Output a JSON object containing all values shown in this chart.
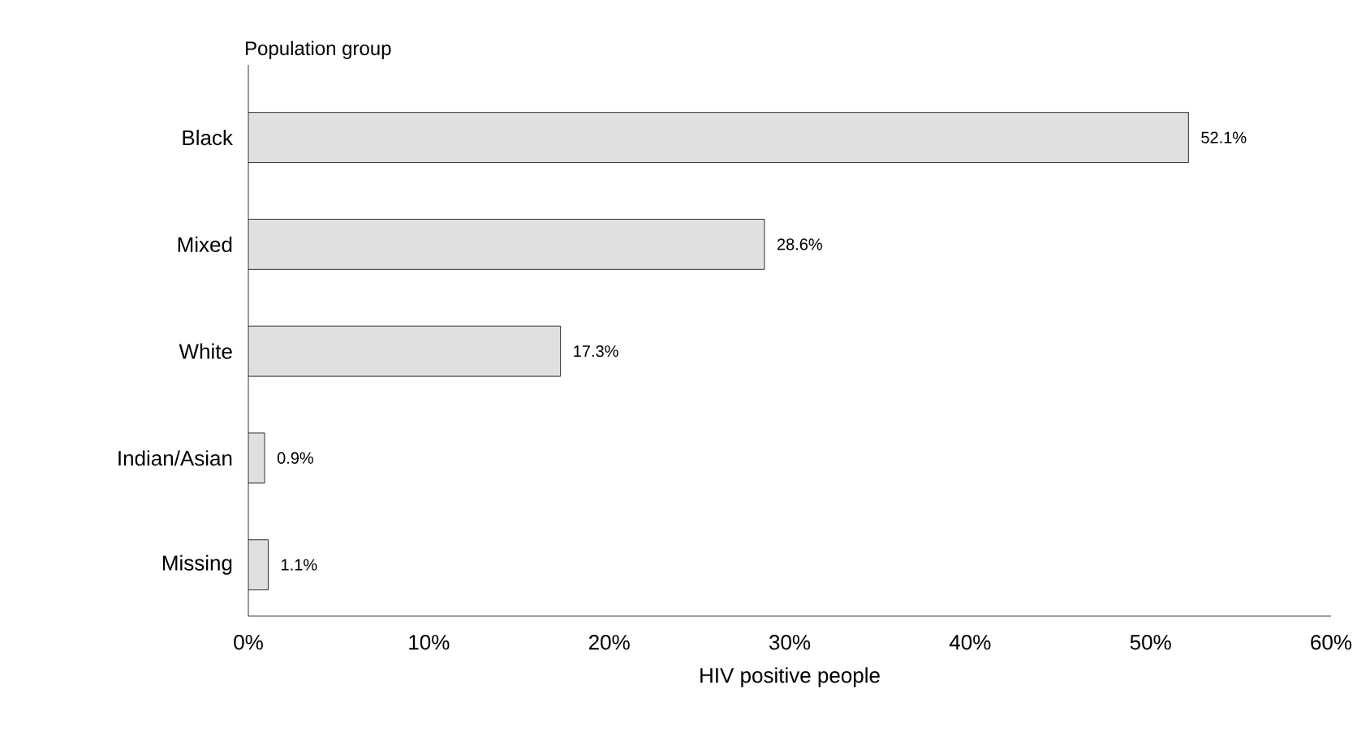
{
  "chart_data": {
    "type": "bar",
    "orientation": "horizontal",
    "ylabel": "Population group",
    "xlabel": "HIV positive people",
    "categories": [
      "Black",
      "Mixed",
      "White",
      "Indian/Asian",
      "Missing"
    ],
    "values": [
      52.1,
      28.6,
      17.3,
      0.9,
      1.1
    ],
    "value_labels": [
      "52.1%",
      "28.6%",
      "17.3%",
      "0.9%",
      "1.1%"
    ],
    "color": "#e0e0e0",
    "xlim": [
      0,
      60
    ],
    "xticks": [
      {
        "value": 0,
        "label": "0%"
      },
      {
        "value": 10,
        "label": "10%"
      },
      {
        "value": 20,
        "label": "20%"
      },
      {
        "value": 30,
        "label": "30%"
      },
      {
        "value": 40,
        "label": "40%"
      },
      {
        "value": 50,
        "label": "50%"
      },
      {
        "value": 60,
        "label": "60%"
      }
    ]
  }
}
